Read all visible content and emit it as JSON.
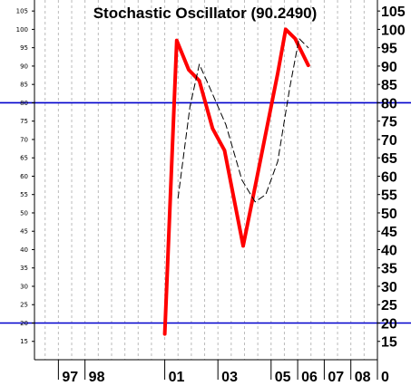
{
  "chart_data": {
    "type": "line",
    "title": "Stochastic Oscillator (90.2490)",
    "xlabel": "",
    "ylabel": "",
    "x_ticks": [
      "97",
      "98",
      "01",
      "03",
      "05",
      "06",
      "07",
      "08",
      "0"
    ],
    "x_ticks_data": [
      1997,
      1998,
      2001,
      2003,
      2005,
      2006,
      2007,
      2008,
      2009
    ],
    "y_ticks": [
      "15",
      "20",
      "25",
      "30",
      "35",
      "40",
      "45",
      "50",
      "55",
      "60",
      "65",
      "70",
      "75",
      "80",
      "85",
      "90",
      "95",
      "100",
      "105"
    ],
    "y_ticks_values": [
      15,
      20,
      25,
      30,
      35,
      40,
      45,
      50,
      55,
      60,
      65,
      70,
      75,
      80,
      85,
      90,
      95,
      100,
      105
    ],
    "ylim": [
      10,
      108
    ],
    "grid": true,
    "reference_lines": [
      {
        "value": 80,
        "color": "#0000cc"
      },
      {
        "value": 20,
        "color": "#0000cc"
      }
    ],
    "series": [
      {
        "style": "solid",
        "color": "#ff0000",
        "x": [
          2001.0,
          2001.45,
          2001.9,
          2002.3,
          2002.8,
          2003.25,
          2003.95,
          2004.45,
          2005.25,
          2005.55,
          2005.9,
          2006.4
        ],
        "values": [
          17,
          97,
          89,
          86,
          73,
          67,
          41,
          59,
          88,
          100,
          97.5,
          90.2
        ]
      },
      {
        "style": "dashed",
        "color": "#000000",
        "x": [
          2001.5,
          2001.95,
          2002.3,
          2002.7,
          2003.3,
          2003.9,
          2004.4,
          2004.8,
          2005.25,
          2005.7,
          2006.05,
          2006.4
        ],
        "values": [
          54,
          79,
          90.5,
          84,
          74,
          59,
          53,
          55,
          64,
          84,
          97.5,
          95
        ]
      }
    ]
  }
}
